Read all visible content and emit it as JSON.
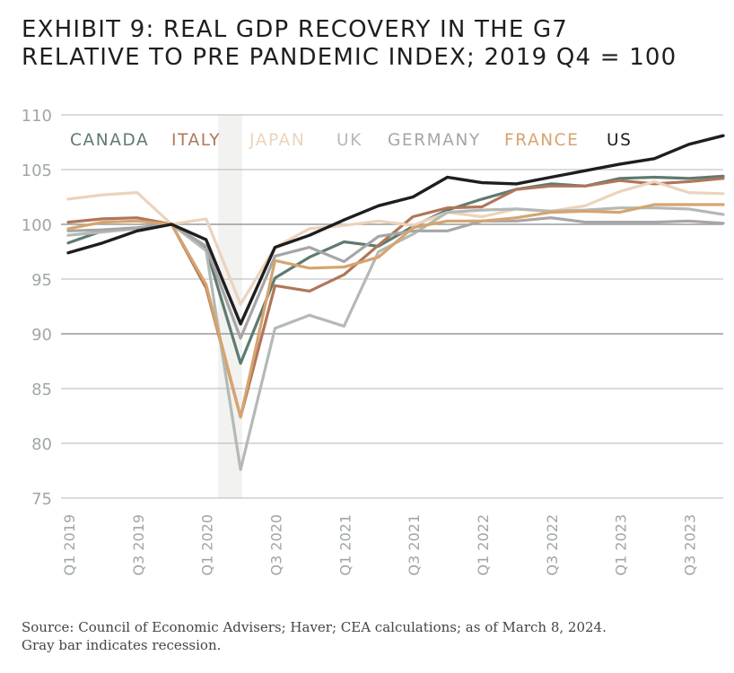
{
  "title_lines": [
    "EXHIBIT 9: REAL GDP RECOVERY IN THE G7",
    "RELATIVE TO PRE PANDEMIC INDEX; 2019 Q4 = 100"
  ],
  "footnote_lines": [
    "Source: Council of Economic Advisers; Haver; CEA calculations; as of March 8, 2024.",
    "Gray bar indicates recession."
  ],
  "colors": {
    "canada": "#5f7a70",
    "italy": "#b0765a",
    "japan": "#ecd3bc",
    "uk": "#b3bab6",
    "germany": "#a7a6a6",
    "france": "#d6a46f",
    "us": "#1e1e1e",
    "recession": "#f2f2f0",
    "grid": "#b7b7b7",
    "tick": "#a0a6a8"
  },
  "chart_data": {
    "type": "line",
    "title": "EXHIBIT 9: REAL GDP RECOVERY IN THE G7 RELATIVE TO PRE PANDEMIC INDEX; 2019 Q4 = 100",
    "xlabel": "",
    "ylabel": "",
    "ylim": [
      75,
      110
    ],
    "yticks": [
      75,
      80,
      85,
      90,
      95,
      100,
      105,
      110
    ],
    "grid": true,
    "legend_position": "top-left, horizontal inside plot",
    "x": [
      "Q1 2019",
      "Q2 2019",
      "Q3 2019",
      "Q4 2019",
      "Q1 2020",
      "Q2 2020",
      "Q3 2020",
      "Q4 2020",
      "Q1 2021",
      "Q2 2021",
      "Q3 2021",
      "Q4 2021",
      "Q1 2022",
      "Q2 2022",
      "Q3 2022",
      "Q4 2022",
      "Q1 2023",
      "Q2 2023",
      "Q3 2023",
      "Q4 2023"
    ],
    "xtick_labels": [
      "Q1 2019",
      "Q3 2019",
      "Q1 2020",
      "Q3 2020",
      "Q1 2021",
      "Q3 2021",
      "Q1 2022",
      "Q3 2022",
      "Q1 2023",
      "Q3 2023"
    ],
    "recession_shading": [
      "Q1 2020",
      "Q2 2020"
    ],
    "series": [
      {
        "name": "CANADA",
        "color_key": "canada",
        "values": [
          98.3,
          99.4,
          99.6,
          100.0,
          97.8,
          87.3,
          95.1,
          97.0,
          98.4,
          98.0,
          99.8,
          101.3,
          102.3,
          103.2,
          103.7,
          103.5,
          104.2,
          104.3,
          104.2,
          104.4
        ]
      },
      {
        "name": "ITALY",
        "color_key": "italy",
        "values": [
          100.2,
          100.5,
          100.6,
          100.0,
          94.2,
          82.4,
          94.4,
          93.9,
          95.4,
          98.1,
          100.7,
          101.5,
          101.6,
          103.2,
          103.5,
          103.5,
          104.0,
          103.7,
          103.9,
          104.2
        ]
      },
      {
        "name": "JAPAN",
        "color_key": "japan",
        "values": [
          102.3,
          102.7,
          102.9,
          100.0,
          100.5,
          92.7,
          97.9,
          99.6,
          99.9,
          100.3,
          99.9,
          101.1,
          100.7,
          101.4,
          101.2,
          101.7,
          103.0,
          103.9,
          102.9,
          102.8
        ]
      },
      {
        "name": "UK",
        "color_key": "uk",
        "values": [
          99.0,
          99.3,
          99.6,
          100.0,
          97.6,
          77.6,
          90.5,
          91.7,
          90.7,
          97.5,
          99.1,
          101.1,
          101.3,
          101.4,
          101.2,
          101.3,
          101.5,
          101.5,
          101.4,
          100.9
        ]
      },
      {
        "name": "GERMANY",
        "color_key": "germany",
        "values": [
          99.4,
          99.5,
          99.7,
          100.0,
          98.0,
          89.6,
          97.1,
          97.9,
          96.6,
          98.9,
          99.4,
          99.4,
          100.3,
          100.3,
          100.6,
          100.2,
          100.2,
          100.2,
          100.3,
          100.1
        ]
      },
      {
        "name": "FRANCE",
        "color_key": "france",
        "values": [
          99.6,
          100.2,
          100.3,
          100.0,
          94.5,
          82.4,
          96.7,
          96.0,
          96.1,
          97.0,
          99.7,
          100.3,
          100.3,
          100.6,
          101.1,
          101.2,
          101.1,
          101.8,
          101.8,
          101.8
        ]
      },
      {
        "name": "US",
        "color_key": "us",
        "values": [
          97.4,
          98.3,
          99.4,
          100.0,
          98.6,
          90.9,
          97.9,
          99.0,
          100.4,
          101.7,
          102.5,
          104.3,
          103.8,
          103.7,
          104.3,
          104.9,
          105.5,
          106.0,
          107.3,
          108.1
        ]
      }
    ]
  }
}
